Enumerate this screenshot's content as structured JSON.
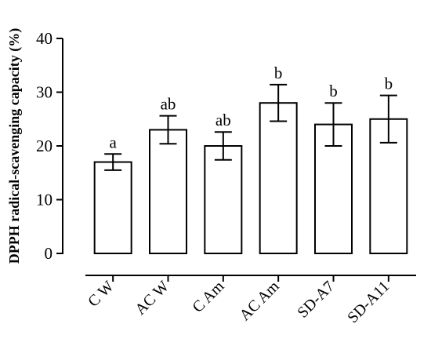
{
  "chart_data": {
    "type": "bar",
    "ylabel": "DPPH radical-scavenging capacity (%)",
    "ylim": [
      0,
      40
    ],
    "yticks": [
      0,
      10,
      20,
      30,
      40
    ],
    "grid": false,
    "categories": [
      "C W",
      "AC W",
      "C Am",
      "AC Am",
      "SD-A7",
      "SD-A11"
    ],
    "values": [
      17,
      23,
      20,
      28,
      24,
      25
    ],
    "errors": [
      1.5,
      2.6,
      2.6,
      3.4,
      4,
      4.4
    ],
    "significance_labels": [
      "a",
      "ab",
      "ab",
      "b",
      "b",
      "b"
    ]
  }
}
